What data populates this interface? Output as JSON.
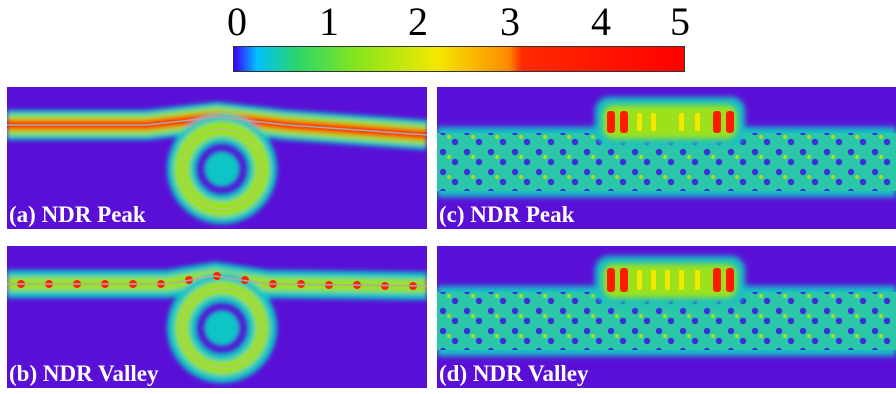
{
  "colorbar": {
    "tick_labels": [
      "0",
      "1",
      "2",
      "3",
      "4",
      "5"
    ],
    "stops": [
      "#3b00ff",
      "#00bfff",
      "#2bd66b",
      "#8ae61a",
      "#f3e800",
      "#ff8c00",
      "#ff2a00",
      "#ff0000"
    ]
  },
  "panels": [
    {
      "label": "(a) NDR Peak",
      "background": "#5a0fd6",
      "glow": "#12c8c0",
      "hot": "#ff2200"
    },
    {
      "label": "(b) NDR Valley",
      "background": "#5a0fd6",
      "glow": "#12c8c0",
      "hot": "#ff2200"
    },
    {
      "label": "(c) NDR Peak",
      "background": "#5a0fd6",
      "glow": "#24c7b5",
      "hot": "#ff1a00"
    },
    {
      "label": "(d) NDR Valley",
      "background": "#5a0fd6",
      "glow": "#24c7b5",
      "hot": "#ff1a00"
    }
  ]
}
